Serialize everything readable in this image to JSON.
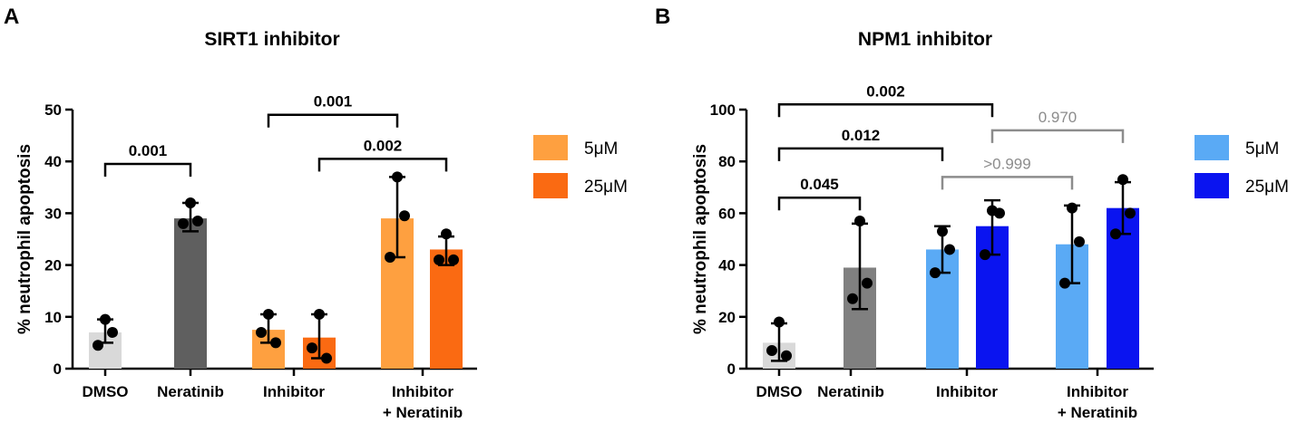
{
  "chart_data": [
    {
      "type": "bar",
      "panel_label": "A",
      "title": "SIRT1 inhibitor",
      "ylabel": "% neutrophil apoptosis",
      "ylim": [
        0,
        50
      ],
      "yticks": [
        0,
        10,
        20,
        30,
        40,
        50
      ],
      "categories": [
        {
          "lines": [
            "DMSO"
          ]
        },
        {
          "lines": [
            "Neratinib"
          ]
        },
        {
          "lines": [
            "Inhibitor"
          ]
        },
        {
          "lines": [
            "Inhibitor",
            "+ Neratinib"
          ]
        }
      ],
      "bars": [
        {
          "category": 0,
          "series": "DMSO",
          "color": "#d9d9d9",
          "value": 7,
          "err_low": 5,
          "err_high": 9.5,
          "points": [
            9.5,
            7,
            4.5
          ]
        },
        {
          "category": 1,
          "series": "Neratinib",
          "color": "#5f5f5f",
          "value": 29,
          "err_low": 26.5,
          "err_high": 32,
          "points": [
            32,
            28.5,
            28
          ]
        },
        {
          "category": 2,
          "series": "5μM",
          "color": "#fea040",
          "value": 7.5,
          "err_low": 5,
          "err_high": 10.5,
          "points": [
            10.5,
            5,
            7
          ]
        },
        {
          "category": 2,
          "series": "25μM",
          "color": "#fa6a12",
          "value": 6,
          "err_low": 2,
          "err_high": 10.5,
          "points": [
            10.5,
            2,
            4
          ]
        },
        {
          "category": 3,
          "series": "5μM",
          "color": "#fea040",
          "value": 29,
          "err_low": 21.5,
          "err_high": 37,
          "points": [
            37,
            29.5,
            21.5
          ]
        },
        {
          "category": 3,
          "series": "25μM",
          "color": "#fa6a12",
          "value": 23,
          "err_low": 20,
          "err_high": 25.5,
          "points": [
            26,
            21,
            21
          ]
        }
      ],
      "comparisons": [
        {
          "from_bar": 0,
          "to_bar": 1,
          "label": "0.001",
          "y": 39.5,
          "style": "bold"
        },
        {
          "from_bar": 2,
          "to_bar": 4,
          "label": "0.001",
          "y": 49,
          "style": "bold"
        },
        {
          "from_bar": 3,
          "to_bar": 5,
          "label": "0.002",
          "y": 40.5,
          "style": "bold"
        }
      ],
      "legend": [
        {
          "label": "5μM",
          "color": "#fea040"
        },
        {
          "label": "25μM",
          "color": "#fa6a12"
        }
      ]
    },
    {
      "type": "bar",
      "panel_label": "B",
      "title": "NPM1 inhibitor",
      "ylabel": "% neutrophil apoptosis",
      "ylim": [
        0,
        100
      ],
      "yticks": [
        0,
        20,
        40,
        60,
        80,
        100
      ],
      "categories": [
        {
          "lines": [
            "DMSO"
          ]
        },
        {
          "lines": [
            "Neratinib"
          ]
        },
        {
          "lines": [
            "Inhibitor"
          ]
        },
        {
          "lines": [
            "Inhibitor",
            "+ Neratinib"
          ]
        }
      ],
      "bars": [
        {
          "category": 0,
          "series": "DMSO",
          "color": "#d9d9d9",
          "value": 10,
          "err_low": 3,
          "err_high": 17.5,
          "points": [
            18,
            5,
            7
          ]
        },
        {
          "category": 1,
          "series": "Neratinib",
          "color": "#808080",
          "value": 39,
          "err_low": 23,
          "err_high": 56,
          "points": [
            57,
            33,
            27
          ]
        },
        {
          "category": 2,
          "series": "5μM",
          "color": "#5aaaf5",
          "value": 46,
          "err_low": 37,
          "err_high": 55,
          "points": [
            53,
            46,
            37
          ]
        },
        {
          "category": 2,
          "series": "25μM",
          "color": "#0a14f0",
          "value": 55,
          "err_low": 44,
          "err_high": 65,
          "points": [
            61,
            60,
            44
          ]
        },
        {
          "category": 3,
          "series": "5μM",
          "color": "#5aaaf5",
          "value": 48,
          "err_low": 33,
          "err_high": 63,
          "points": [
            62,
            49,
            33
          ]
        },
        {
          "category": 3,
          "series": "25μM",
          "color": "#0a14f0",
          "value": 62,
          "err_low": 52,
          "err_high": 72,
          "points": [
            73,
            60,
            52
          ]
        }
      ],
      "comparisons": [
        {
          "from_bar": 0,
          "to_bar": 1,
          "label": "0.045",
          "y": 66,
          "style": "bold"
        },
        {
          "from_bar": 0,
          "to_bar": 2,
          "label": "0.012",
          "y": 85,
          "style": "bold"
        },
        {
          "from_bar": 0,
          "to_bar": 3,
          "label": "0.002",
          "y": 102,
          "style": "bold"
        },
        {
          "from_bar": 2,
          "to_bar": 4,
          "label": ">0.999",
          "y": 74,
          "style": "gray"
        },
        {
          "from_bar": 3,
          "to_bar": 5,
          "label": "0.970",
          "y": 92,
          "style": "gray"
        }
      ],
      "legend": [
        {
          "label": "5μM",
          "color": "#5aaaf5"
        },
        {
          "label": "25μM",
          "color": "#0a14f0"
        }
      ]
    }
  ]
}
